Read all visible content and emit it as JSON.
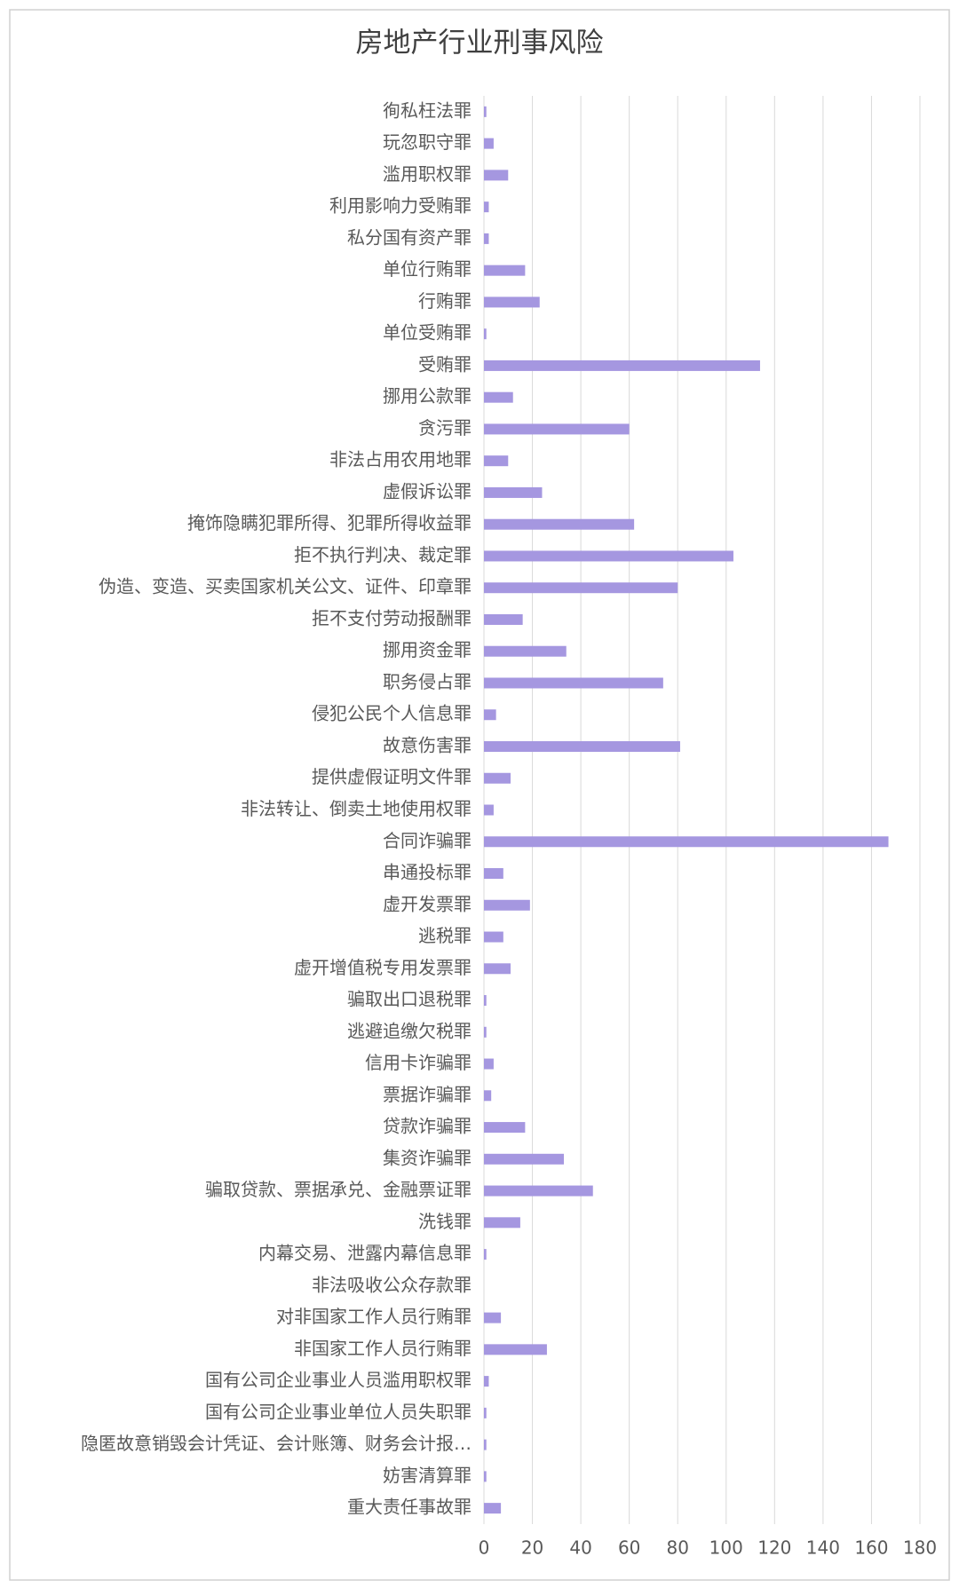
{
  "chart_data": {
    "type": "barh",
    "title": "房地产行业刑事风险",
    "categories": [
      "徇私枉法罪",
      "玩忽职守罪",
      "滥用职权罪",
      "利用影响力受贿罪",
      "私分国有资产罪",
      "单位行贿罪",
      "行贿罪",
      "单位受贿罪",
      "受贿罪",
      "挪用公款罪",
      "贪污罪",
      "非法占用农用地罪",
      "虚假诉讼罪",
      "掩饰隐瞒犯罪所得、犯罪所得收益罪",
      "拒不执行判决、裁定罪",
      "伪造、变造、买卖国家机关公文、证件、印章罪",
      "拒不支付劳动报酬罪",
      "挪用资金罪",
      "职务侵占罪",
      "侵犯公民个人信息罪",
      "故意伤害罪",
      "提供虚假证明文件罪",
      "非法转让、倒卖土地使用权罪",
      "合同诈骗罪",
      "串通投标罪",
      "虚开发票罪",
      "逃税罪",
      "虚开增值税专用发票罪",
      "骗取出口退税罪",
      "逃避追缴欠税罪",
      "信用卡诈骗罪",
      "票据诈骗罪",
      "贷款诈骗罪",
      "集资诈骗罪",
      "骗取贷款、票据承兑、金融票证罪",
      "洗钱罪",
      "内幕交易、泄露内幕信息罪",
      "非法吸收公众存款罪",
      "对非国家工作人员行贿罪",
      "非国家工作人员行贿罪",
      "国有公司企业事业人员滥用职权罪",
      "国有公司企业事业单位人员失职罪",
      "隐匿故意销毁会计凭证、会计账簿、财务会计报…",
      "妨害清算罪",
      "重大责任事故罪"
    ],
    "values": [
      1,
      4,
      10,
      2,
      2,
      17,
      23,
      1,
      114,
      12,
      60,
      10,
      24,
      62,
      103,
      80,
      16,
      34,
      74,
      5,
      81,
      11,
      4,
      167,
      8,
      19,
      8,
      11,
      1,
      1,
      4,
      3,
      17,
      33,
      45,
      15,
      1,
      0,
      7,
      26,
      2,
      1,
      1,
      1,
      7
    ],
    "color": "#a597e0",
    "xlim": [
      0,
      180
    ],
    "xticks": [
      0,
      20,
      40,
      60,
      80,
      100,
      120,
      140,
      160,
      180
    ],
    "grid": true
  }
}
